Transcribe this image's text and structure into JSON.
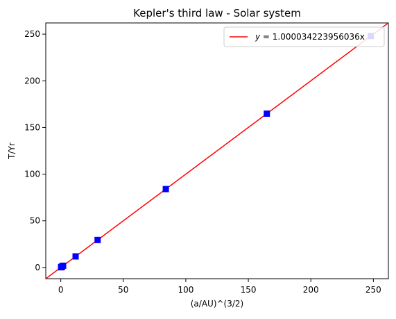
{
  "chart_data": {
    "type": "scatter",
    "title": "Kepler's third law - Solar system",
    "xlabel": "(a/AU)^(3/2)",
    "ylabel": "T/Yr",
    "xlim": [
      -12,
      262
    ],
    "ylim": [
      -12,
      262
    ],
    "x_ticks": [
      0,
      50,
      100,
      150,
      200,
      250
    ],
    "y_ticks": [
      0,
      50,
      100,
      150,
      200,
      250
    ],
    "grid": false,
    "legend_position": "top-right",
    "series": [
      {
        "kind": "markers",
        "marker": "square",
        "color": "#0000ff",
        "points": [
          {
            "x": 0.24,
            "y": 0.24
          },
          {
            "x": 0.62,
            "y": 0.62
          },
          {
            "x": 1.0,
            "y": 1.0
          },
          {
            "x": 1.88,
            "y": 1.88
          },
          {
            "x": 11.86,
            "y": 11.86
          },
          {
            "x": 29.46,
            "y": 29.46
          },
          {
            "x": 84.01,
            "y": 84.01
          },
          {
            "x": 164.8,
            "y": 164.8
          },
          {
            "x": 248.0,
            "y": 248.0
          }
        ]
      },
      {
        "kind": "line",
        "name": "y = 1.000034223956036x",
        "legend_prefix": "y",
        "legend_suffix": " = 1.000034223956036x",
        "color": "#ff0000",
        "slope": 1.000034223956036
      }
    ]
  }
}
